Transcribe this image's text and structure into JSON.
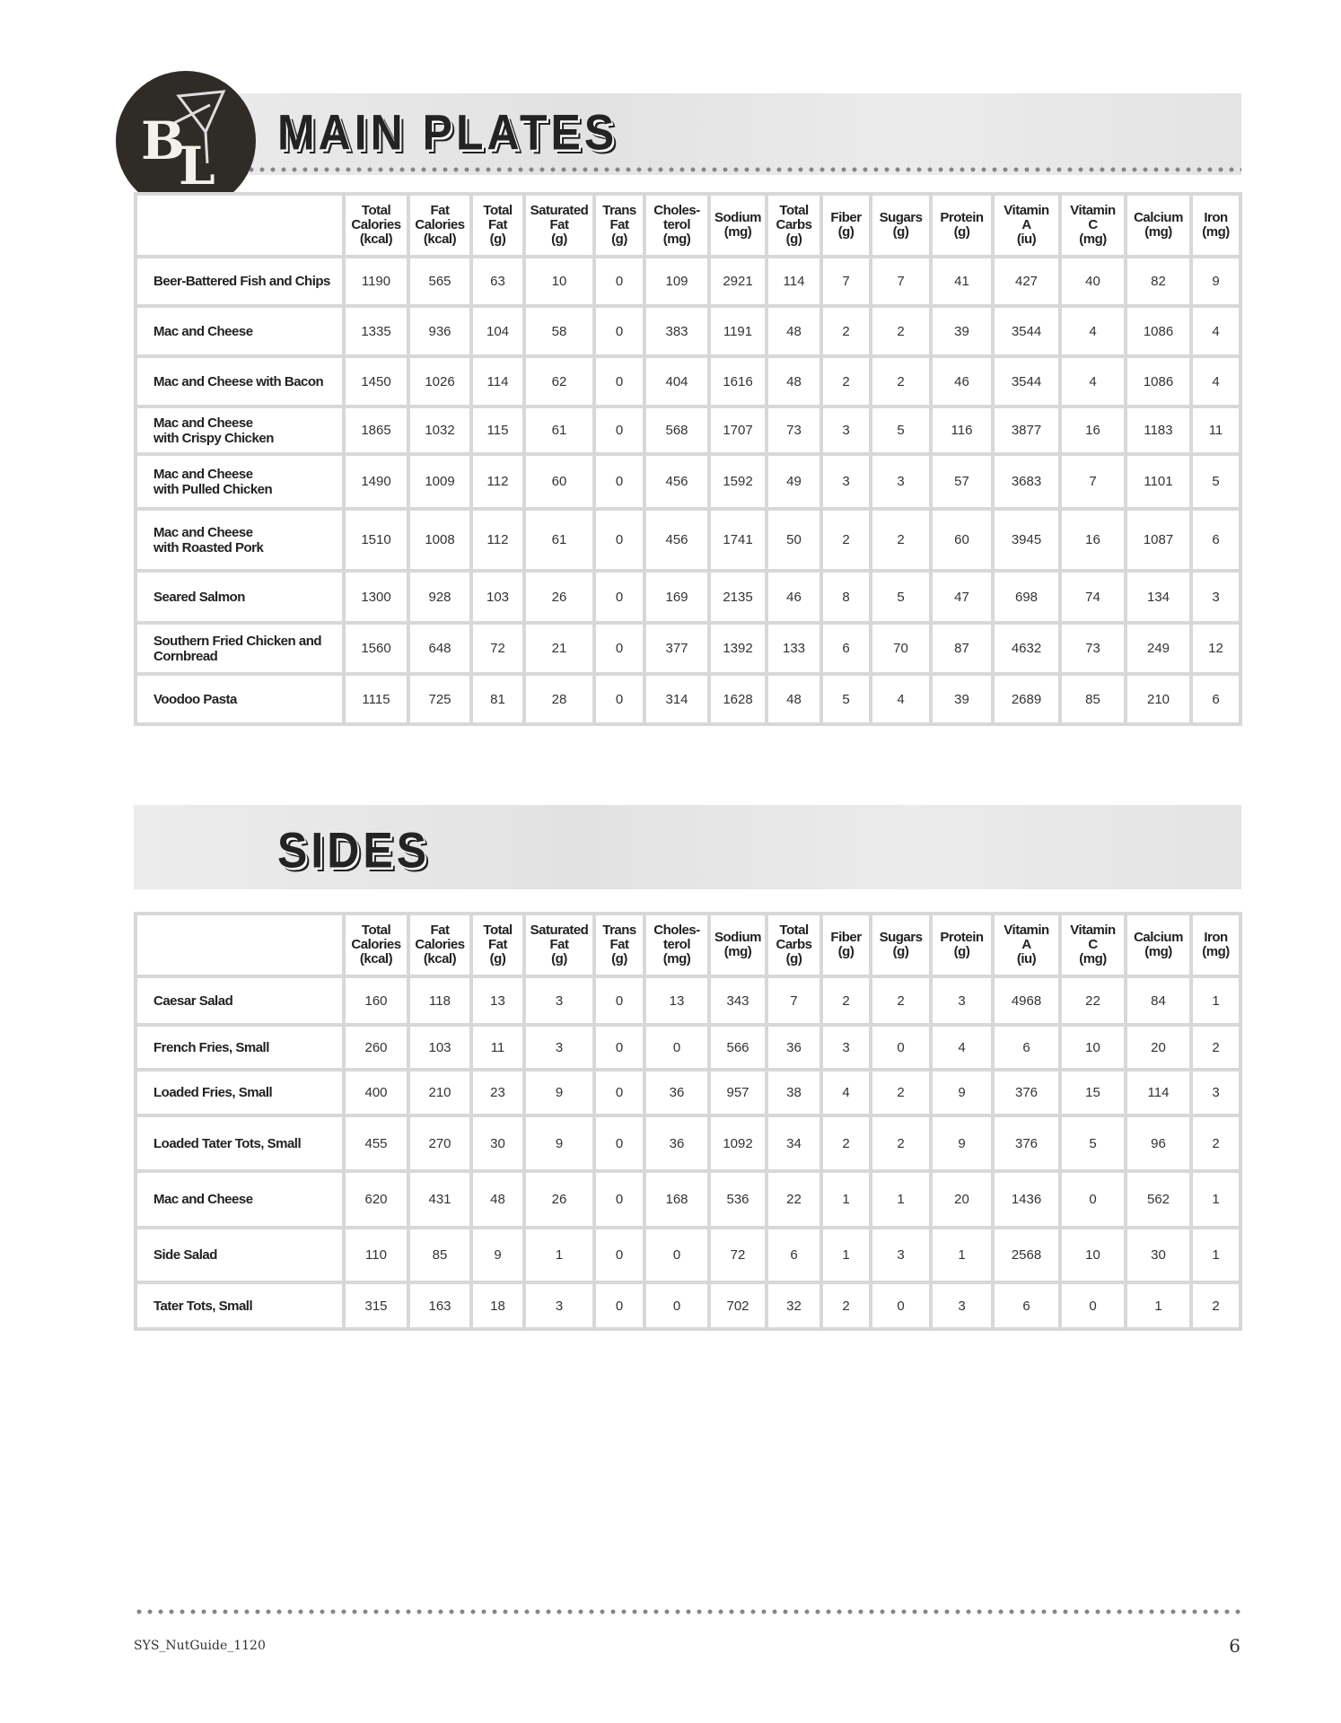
{
  "logo": {
    "text": "BL"
  },
  "columns": [
    "Total\nCalories\n(kcal)",
    "Fat\nCalories\n(kcal)",
    "Total\nFat\n(g)",
    "Saturated\nFat\n(g)",
    "Trans\nFat\n(g)",
    "Choles-\nterol\n(mg)",
    "Sodium\n(mg)",
    "Total\nCarbs\n(g)",
    "Fiber\n(g)",
    "Sugars\n(g)",
    "Protein\n(g)",
    "Vitamin\nA\n(iu)",
    "Vitamin\nC\n(mg)",
    "Calcium\n(mg)",
    "Iron\n(mg)"
  ],
  "main_plates": {
    "title": "MAIN PLATES",
    "rows": [
      {
        "name": "Beer-Battered Fish and Chips",
        "values": [
          "1190",
          "565",
          "63",
          "10",
          "0",
          "109",
          "2921",
          "114",
          "7",
          "7",
          "41",
          "427",
          "40",
          "82",
          "9"
        ]
      },
      {
        "name": "Mac and Cheese",
        "values": [
          "1335",
          "936",
          "104",
          "58",
          "0",
          "383",
          "1191",
          "48",
          "2",
          "2",
          "39",
          "3544",
          "4",
          "1086",
          "4"
        ]
      },
      {
        "name": "Mac and Cheese with Bacon",
        "values": [
          "1450",
          "1026",
          "114",
          "62",
          "0",
          "404",
          "1616",
          "48",
          "2",
          "2",
          "46",
          "3544",
          "4",
          "1086",
          "4"
        ]
      },
      {
        "name": "Mac and Cheese\nwith Crispy Chicken",
        "values": [
          "1865",
          "1032",
          "115",
          "61",
          "0",
          "568",
          "1707",
          "73",
          "3",
          "5",
          "116",
          "3877",
          "16",
          "1183",
          "11"
        ]
      },
      {
        "name": "Mac and Cheese\nwith Pulled Chicken",
        "values": [
          "1490",
          "1009",
          "112",
          "60",
          "0",
          "456",
          "1592",
          "49",
          "3",
          "3",
          "57",
          "3683",
          "7",
          "1101",
          "5"
        ]
      },
      {
        "name": "Mac and Cheese\nwith Roasted Pork",
        "values": [
          "1510",
          "1008",
          "112",
          "61",
          "0",
          "456",
          "1741",
          "50",
          "2",
          "2",
          "60",
          "3945",
          "16",
          "1087",
          "6"
        ]
      },
      {
        "name": "Seared Salmon",
        "values": [
          "1300",
          "928",
          "103",
          "26",
          "0",
          "169",
          "2135",
          "46",
          "8",
          "5",
          "47",
          "698",
          "74",
          "134",
          "3"
        ]
      },
      {
        "name": "Southern Fried Chicken and\nCornbread",
        "values": [
          "1560",
          "648",
          "72",
          "21",
          "0",
          "377",
          "1392",
          "133",
          "6",
          "70",
          "87",
          "4632",
          "73",
          "249",
          "12"
        ]
      },
      {
        "name": "Voodoo Pasta",
        "values": [
          "1115",
          "725",
          "81",
          "28",
          "0",
          "314",
          "1628",
          "48",
          "5",
          "4",
          "39",
          "2689",
          "85",
          "210",
          "6"
        ]
      }
    ]
  },
  "sides": {
    "title": "SIDES",
    "rows": [
      {
        "name": "Caesar Salad",
        "values": [
          "160",
          "118",
          "13",
          "3",
          "0",
          "13",
          "343",
          "7",
          "2",
          "2",
          "3",
          "4968",
          "22",
          "84",
          "1"
        ]
      },
      {
        "name": "French Fries, Small",
        "values": [
          "260",
          "103",
          "11",
          "3",
          "0",
          "0",
          "566",
          "36",
          "3",
          "0",
          "4",
          "6",
          "10",
          "20",
          "2"
        ]
      },
      {
        "name": "Loaded Fries, Small",
        "values": [
          "400",
          "210",
          "23",
          "9",
          "0",
          "36",
          "957",
          "38",
          "4",
          "2",
          "9",
          "376",
          "15",
          "114",
          "3"
        ]
      },
      {
        "name": "Loaded Tater Tots, Small",
        "values": [
          "455",
          "270",
          "30",
          "9",
          "0",
          "36",
          "1092",
          "34",
          "2",
          "2",
          "9",
          "376",
          "5",
          "96",
          "2"
        ]
      },
      {
        "name": "Mac and Cheese",
        "values": [
          "620",
          "431",
          "48",
          "26",
          "0",
          "168",
          "536",
          "22",
          "1",
          "1",
          "20",
          "1436",
          "0",
          "562",
          "1"
        ]
      },
      {
        "name": "Side Salad",
        "values": [
          "110",
          "85",
          "9",
          "1",
          "0",
          "0",
          "72",
          "6",
          "1",
          "3",
          "1",
          "2568",
          "10",
          "30",
          "1"
        ]
      },
      {
        "name": "Tater Tots, Small",
        "values": [
          "315",
          "163",
          "18",
          "3",
          "0",
          "0",
          "702",
          "32",
          "2",
          "0",
          "3",
          "6",
          "0",
          "1",
          "2"
        ]
      }
    ]
  },
  "footer": {
    "code": "SYS_NutGuide_1120",
    "page": "6"
  }
}
